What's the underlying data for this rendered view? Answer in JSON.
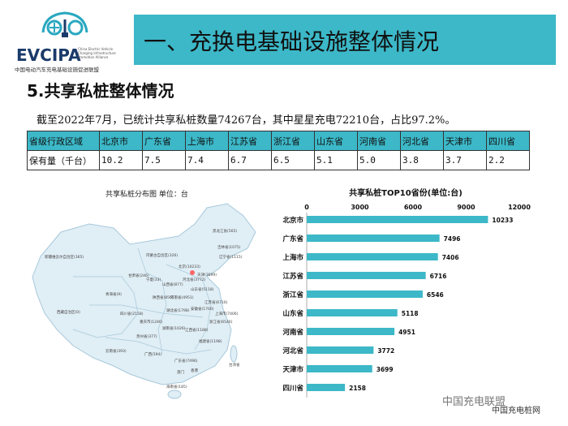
{
  "logo": {
    "name": "EVCIPA",
    "english": "China Electric Vehicle Charging Infrastructure Promotion Alliance",
    "chinese": "中国电动汽车充电基础设施促进联盟"
  },
  "header": {
    "title": "一、充换电基础设施整体情况"
  },
  "section": {
    "title": "5.共享私桩整体情况"
  },
  "summary": "截至2022年7月，已统计共享私桩数量74267台，其中星星充电72210台，占比97.2%。",
  "table": {
    "header": [
      "省级行政区域",
      "北京市",
      "广东省",
      "上海市",
      "江苏省",
      "浙江省",
      "山东省",
      "河南省",
      "河北省",
      "天津市",
      "四川省"
    ],
    "row": [
      "保有量（千台）",
      "10.2",
      "7.5",
      "7.4",
      "6.7",
      "6.5",
      "5.1",
      "5.0",
      "3.8",
      "3.7",
      "2.2"
    ]
  },
  "map": {
    "title": "共享私桩分布图  单位：台",
    "labels": [
      "黑龙江省(565)",
      "吉林省(1075)",
      "新疆维吾尔自治区(365)",
      "内蒙古自治区(326)",
      "北京(10233)",
      "天津(3699)",
      "河北省(3772)",
      "甘肃省(246)",
      "宁夏(33)",
      "山西省(877)",
      "山东省(5118)",
      "青海省(9)",
      "陕西省(856)",
      "河南省(4951)",
      "江苏省(6716)",
      "西藏自治区(0)",
      "四川省(2158)",
      "湖北省(1798)",
      "安徽省(1700)",
      "上海市(7406)",
      "重庆市(1246)",
      "浙江省(6546)",
      "湖南省(1026)",
      "江西省(1188)",
      "贵州省(377)",
      "福建省(1198)",
      "云南省(393)",
      "广西(594)",
      "广东省(7496)",
      "海南省(185)",
      "辽宁省(1115)",
      "台湾省",
      "香港",
      "澳门"
    ],
    "colors": {
      "land": "#e0eef5",
      "border": "#a7c9dc",
      "highlight": "#ff6666"
    }
  },
  "chart_data": {
    "type": "bar",
    "orientation": "horizontal",
    "title": "共享私桩TOP10省份(单位:台)",
    "categories": [
      "北京市",
      "广东省",
      "上海市",
      "江苏省",
      "浙江省",
      "山东省",
      "河南省",
      "河北省",
      "天津市",
      "四川省"
    ],
    "values": [
      10233,
      7496,
      7406,
      6716,
      6546,
      5118,
      4951,
      3772,
      3699,
      2158
    ],
    "xticks": [
      0,
      3000,
      6000,
      9000,
      12000
    ],
    "xlim": [
      0,
      12000
    ],
    "bar_color": "#3cb8c8"
  },
  "watermark": {
    "text1": "中国充电联盟",
    "text2": "中国充电桩网"
  }
}
